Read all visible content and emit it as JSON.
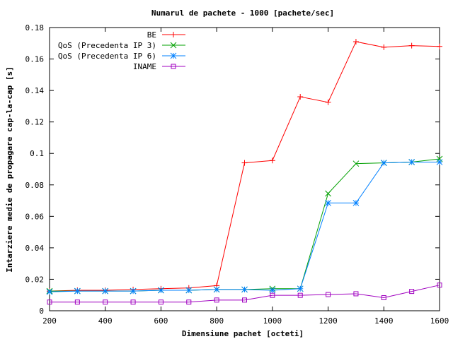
{
  "chart_data": {
    "type": "line",
    "title": "Numarul de pachete - 1000 [pachete/sec]",
    "xlabel": "Dimensiune pachet [octeti]",
    "ylabel": "Intarziere medie de propagare cap-la-cap [s]",
    "xlim": [
      200,
      1600
    ],
    "ylim": [
      0,
      0.18
    ],
    "xticks": [
      200,
      400,
      600,
      800,
      1000,
      1200,
      1400,
      1600
    ],
    "xtick_labels": [
      "200",
      "400",
      "600",
      "800",
      "1000",
      "1200",
      "1400",
      "1600"
    ],
    "yticks": [
      0,
      0.02,
      0.04,
      0.06,
      0.08,
      0.1,
      0.12,
      0.14,
      0.16,
      0.18
    ],
    "ytick_labels": [
      "0",
      "0.02",
      "0.04",
      "0.06",
      "0.08",
      "0.1",
      "0.12",
      "0.14",
      "0.16",
      "0.18"
    ],
    "grid": false,
    "legend_position": "top-left",
    "x": [
      200,
      300,
      400,
      500,
      600,
      700,
      800,
      900,
      1000,
      1100,
      1200,
      1300,
      1400,
      1500,
      1600
    ],
    "series": [
      {
        "name": "BE",
        "color": "#ff0000",
        "marker": "plus",
        "values": [
          0.0125,
          0.013,
          0.013,
          0.0135,
          0.014,
          0.0145,
          0.016,
          0.094,
          0.0955,
          0.136,
          0.1325,
          0.171,
          0.1675,
          0.1685,
          0.168
        ]
      },
      {
        "name": "QoS (Precedenta IP 3)",
        "color": "#00a000",
        "marker": "cross",
        "values": [
          0.0125,
          0.0125,
          0.0125,
          0.0125,
          0.013,
          0.013,
          0.0135,
          0.0135,
          0.014,
          0.014,
          0.0745,
          0.0935,
          0.094,
          0.0945,
          0.0965
        ]
      },
      {
        "name": "QoS (Precedenta IP 6)",
        "color": "#0080ff",
        "marker": "star",
        "values": [
          0.012,
          0.0125,
          0.0125,
          0.0125,
          0.013,
          0.013,
          0.0135,
          0.0135,
          0.013,
          0.014,
          0.0685,
          0.0685,
          0.094,
          0.0945,
          0.0945
        ]
      },
      {
        "name": "INAME",
        "color": "#a000c0",
        "marker": "square",
        "values": [
          0.0055,
          0.0055,
          0.0055,
          0.0055,
          0.0055,
          0.0055,
          0.0068,
          0.0068,
          0.0098,
          0.0098,
          0.0103,
          0.0108,
          0.0083,
          0.0123,
          0.0163
        ]
      }
    ]
  }
}
